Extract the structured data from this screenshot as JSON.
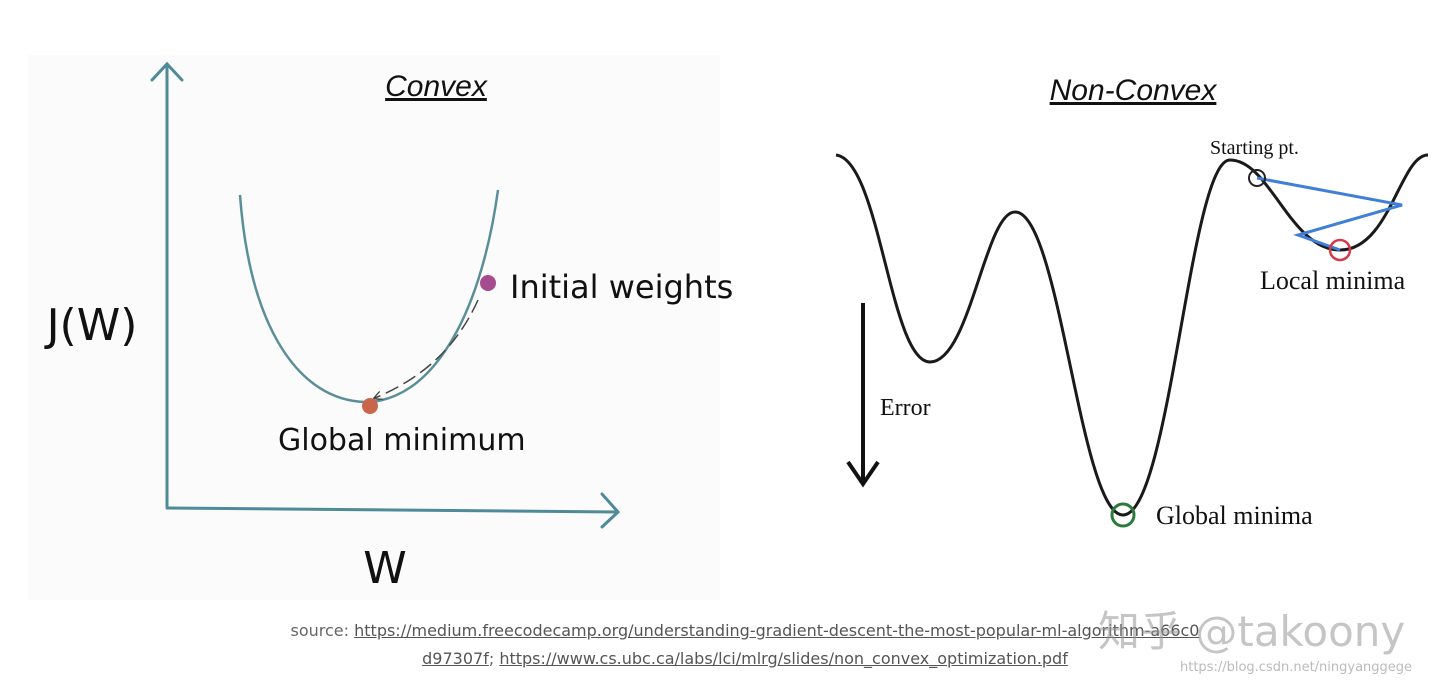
{
  "convex": {
    "title": "Convex",
    "y_label": "J(W)",
    "x_label": "W",
    "initial_label": "Initial weights",
    "minimum_label": "Global minimum"
  },
  "non_convex": {
    "title": "Non-Convex",
    "start_label": "Starting pt.",
    "local_label": "Local minima",
    "error_label": "Error",
    "global_label": "Global minima"
  },
  "caption": {
    "prefix": "source:",
    "link1": "https://medium.freecodecamp.org/understanding-gradient-descent-the-most-popular-ml-algorithm-a66c0d97307f",
    "separator": ";",
    "link2": "https://www.cs.ubc.ca/labs/lci/mlrg/slides/non_convex_optimization.pdf"
  },
  "watermark": {
    "main": "知乎 @takoony",
    "url": "https://blog.csdn.net/ningyanggege"
  }
}
